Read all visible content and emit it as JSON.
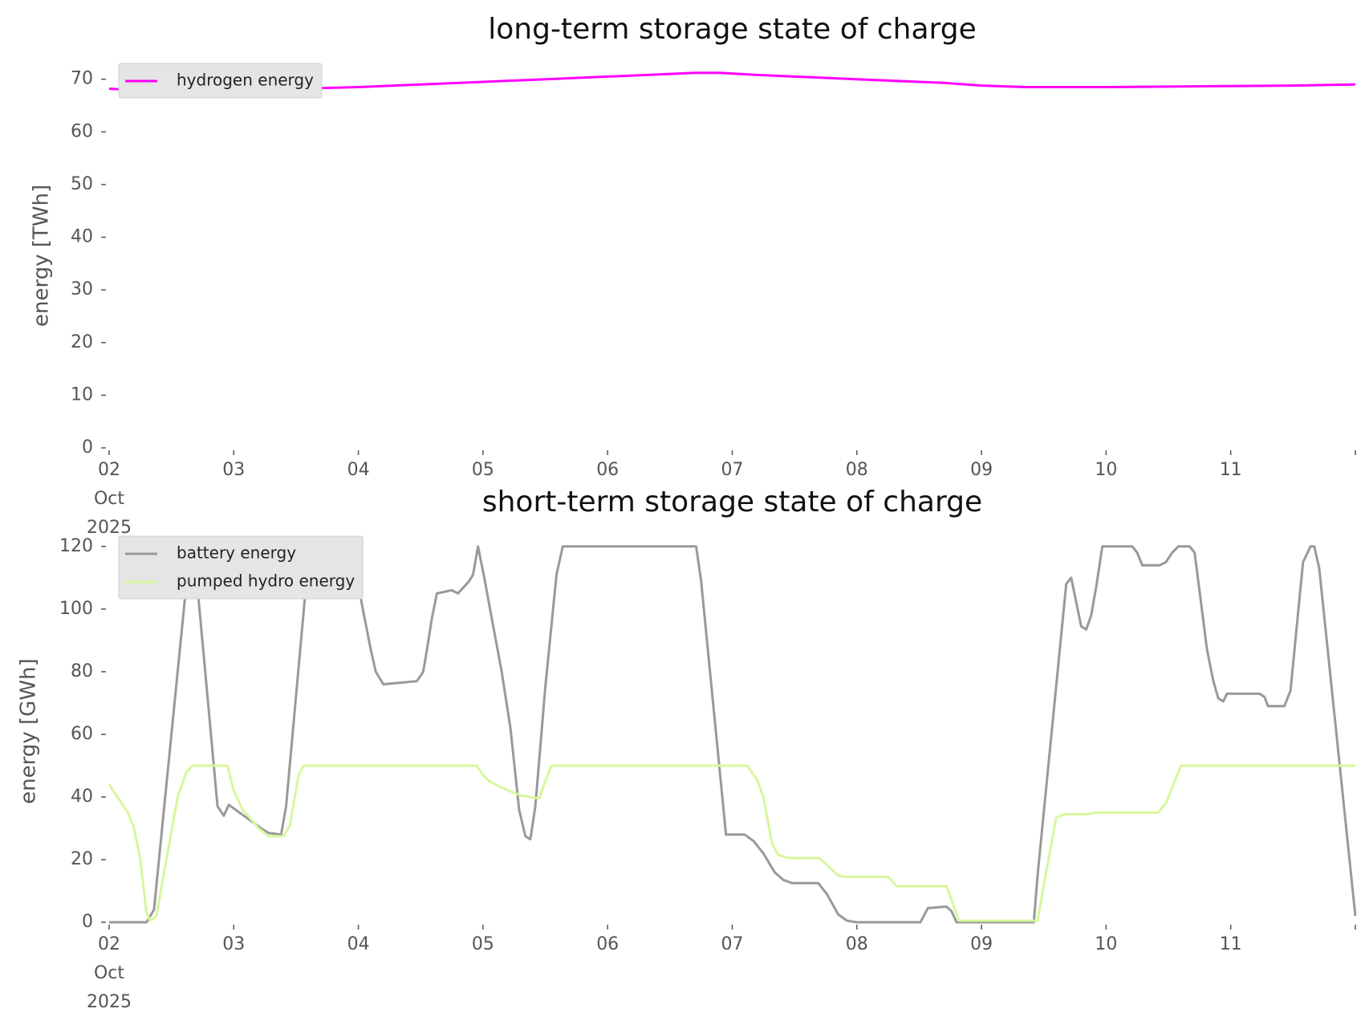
{
  "chart_data": [
    {
      "type": "line",
      "title": "long-term storage state of charge",
      "y_label": "energy [TWh]",
      "xlim": [
        2,
        12
      ],
      "ylim": [
        0,
        73
      ],
      "legend": "upper left",
      "grid": false,
      "xticks": [
        {
          "value": 2,
          "label": "02\nOct\n2025"
        },
        {
          "value": 3,
          "label": "03"
        },
        {
          "value": 4,
          "label": "04"
        },
        {
          "value": 5,
          "label": "05"
        },
        {
          "value": 6,
          "label": "06"
        },
        {
          "value": 7,
          "label": "07"
        },
        {
          "value": 8,
          "label": "08"
        },
        {
          "value": 9,
          "label": "09"
        },
        {
          "value": 10,
          "label": "10"
        },
        {
          "value": 11,
          "label": "11"
        }
      ],
      "yticks": [
        0,
        10,
        20,
        30,
        40,
        50,
        60,
        70
      ],
      "series": [
        {
          "name": "hydrogen energy",
          "color": "#ff00ff",
          "x": [
            2.0,
            2.15,
            2.3,
            2.5,
            3.0,
            3.5,
            4.0,
            4.5,
            5.0,
            5.5,
            6.0,
            6.5,
            6.7,
            6.9,
            7.2,
            7.5,
            8.0,
            8.5,
            8.7,
            9.0,
            9.35,
            10.0,
            10.5,
            11.0,
            11.5,
            12.0
          ],
          "values": [
            68.2,
            68,
            67.8,
            67.9,
            68,
            68.2,
            68.5,
            69,
            69.5,
            70,
            70.5,
            71,
            71.2,
            71.2,
            70.8,
            70.5,
            70,
            69.5,
            69.3,
            68.8,
            68.5,
            68.5,
            68.6,
            68.7,
            68.8,
            69
          ]
        }
      ]
    },
    {
      "type": "line",
      "title": "short-term storage state of charge",
      "y_label": "energy [GWh]",
      "xlim": [
        2,
        12
      ],
      "ylim": [
        0,
        122
      ],
      "legend": "upper left",
      "grid": false,
      "xticks": [
        {
          "value": 2,
          "label": "02\nOct\n2025"
        },
        {
          "value": 3,
          "label": "03"
        },
        {
          "value": 4,
          "label": "04"
        },
        {
          "value": 5,
          "label": "05"
        },
        {
          "value": 6,
          "label": "06"
        },
        {
          "value": 7,
          "label": "07"
        },
        {
          "value": 8,
          "label": "08"
        },
        {
          "value": 9,
          "label": "09"
        },
        {
          "value": 10,
          "label": "10"
        },
        {
          "value": 11,
          "label": "11"
        }
      ],
      "yticks": [
        0,
        20,
        40,
        60,
        80,
        100,
        120
      ],
      "series": [
        {
          "name": "battery energy",
          "color": "#999999",
          "x": [
            2.0,
            2.3,
            2.36,
            2.65,
            2.69,
            2.87,
            2.92,
            2.96,
            3.22,
            3.28,
            3.38,
            3.42,
            3.59,
            3.63,
            3.94,
            4.05,
            4.1,
            4.14,
            4.2,
            4.47,
            4.52,
            4.55,
            4.59,
            4.63,
            4.75,
            4.8,
            4.89,
            4.92,
            4.96,
            5.01,
            5.08,
            5.15,
            5.22,
            5.29,
            5.34,
            5.38,
            5.42,
            5.5,
            5.55,
            5.59,
            5.64,
            6.71,
            6.75,
            6.95,
            7.1,
            7.17,
            7.25,
            7.34,
            7.41,
            7.48,
            7.69,
            7.76,
            7.85,
            7.92,
            8.0,
            8.51,
            8.57,
            8.72,
            8.76,
            8.8,
            9.42,
            9.45,
            9.68,
            9.72,
            9.8,
            9.84,
            9.88,
            9.92,
            9.97,
            10.21,
            10.25,
            10.29,
            10.43,
            10.48,
            10.53,
            10.58,
            10.67,
            10.71,
            10.81,
            10.86,
            10.9,
            10.94,
            10.97,
            11.23,
            11.27,
            11.3,
            11.43,
            11.48,
            11.58,
            11.64,
            11.67,
            11.71,
            12.0
          ],
          "values": [
            0,
            0,
            4,
            120,
            115,
            37,
            34,
            37.5,
            30,
            28.5,
            28,
            37,
            112,
            120,
            120,
            97,
            87,
            80,
            76,
            77,
            80,
            87,
            97,
            105,
            106,
            105,
            109,
            111,
            120,
            110,
            95,
            80,
            62,
            36,
            27.5,
            26.5,
            37,
            75,
            95,
            111,
            120,
            120,
            109,
            28,
            28,
            26,
            22,
            16,
            13.5,
            12.5,
            12.5,
            9,
            2.5,
            0.5,
            0,
            0,
            4.5,
            5,
            3.5,
            0,
            0,
            15,
            108,
            110,
            94.5,
            93.5,
            98,
            107,
            120,
            120,
            118,
            114,
            114,
            115,
            118,
            120,
            120,
            118,
            87,
            77,
            71.5,
            70.5,
            73,
            73,
            72,
            69,
            69,
            74,
            115,
            120,
            120,
            113,
            2
          ]
        },
        {
          "name": "pumped hydro energy",
          "color": "#d6f79c",
          "x": [
            2.0,
            2.1,
            2.15,
            2.2,
            2.25,
            2.3,
            2.33,
            2.38,
            2.45,
            2.55,
            2.62,
            2.67,
            2.95,
            3.0,
            3.07,
            3.2,
            3.28,
            3.4,
            3.45,
            3.52,
            3.56,
            4.95,
            5.0,
            5.05,
            5.15,
            5.3,
            5.45,
            5.5,
            5.55,
            7.12,
            7.2,
            7.25,
            7.32,
            7.37,
            7.45,
            7.7,
            7.85,
            7.9,
            8.25,
            8.32,
            8.72,
            8.82,
            9.45,
            9.5,
            9.6,
            9.67,
            9.85,
            9.92,
            10.42,
            10.48,
            10.6,
            12.0
          ],
          "values": [
            44,
            38,
            35,
            30,
            20,
            3,
            0.5,
            2,
            18,
            40,
            48,
            50,
            50,
            42,
            36,
            30,
            27.5,
            27.5,
            31,
            47,
            50,
            50,
            47,
            45,
            43,
            40.5,
            39.5,
            45,
            50,
            50,
            45.5,
            40,
            25,
            21.5,
            20.5,
            20.5,
            15,
            14.5,
            14.5,
            11.5,
            11.5,
            0.5,
            0.5,
            12,
            33.5,
            34.5,
            34.5,
            35,
            35,
            38,
            50,
            50
          ]
        }
      ]
    }
  ]
}
